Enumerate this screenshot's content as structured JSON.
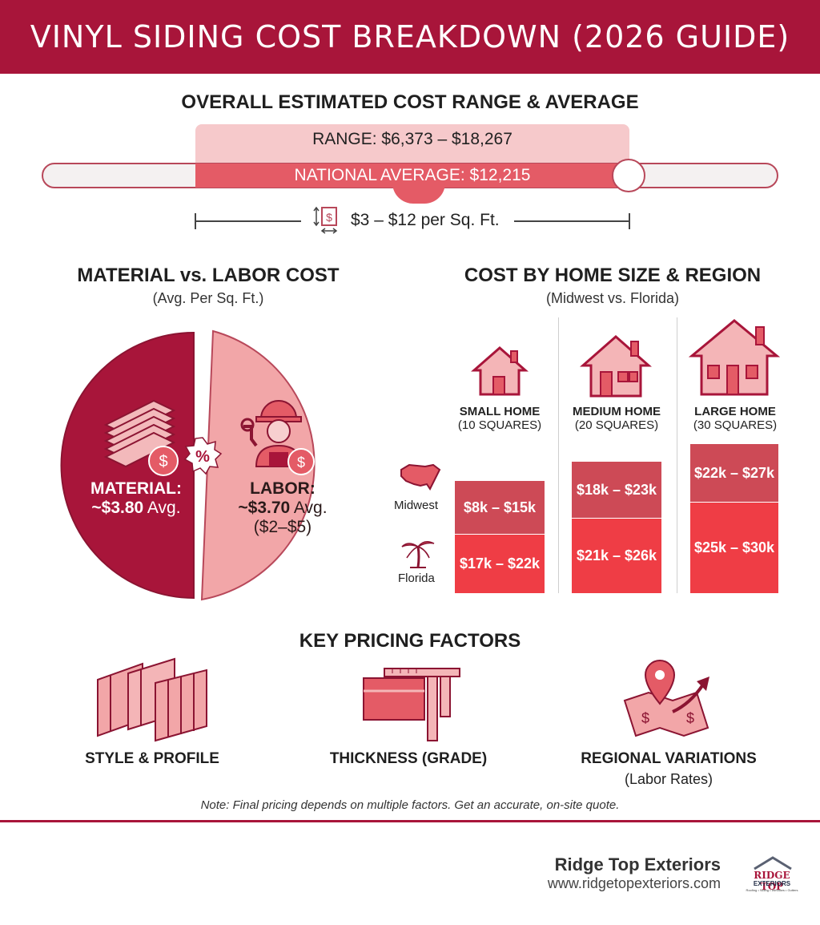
{
  "header": {
    "title": "VINYL SIDING COST BREAKDOWN (2026 GUIDE)"
  },
  "overall": {
    "title": "OVERALL ESTIMATED COST RANGE & AVERAGE",
    "range_label": "RANGE: $6,373 – $18,267",
    "average_label": "NATIONAL AVERAGE: $12,215",
    "per_sqft_label": "$3 – $12 per Sq. Ft."
  },
  "material_labor": {
    "title": "MATERIAL vs. LABOR COST",
    "subtitle": "(Avg. Per Sq. Ft.)",
    "material_name": "MATERIAL:",
    "material_value": "~$3.80",
    "material_suffix": "Avg.",
    "labor_name": "LABOR:",
    "labor_value": "~$3.70",
    "labor_suffix": "Avg.",
    "labor_range": "($2–$5)"
  },
  "home_size": {
    "title": "COST BY HOME SIZE & REGION",
    "subtitle": "(Midwest vs. Florida)",
    "regions": [
      "Midwest",
      "Florida"
    ],
    "homes": [
      {
        "name": "SMALL HOME",
        "size": "(10 SQUARES)",
        "midwest": "$8k – $15k",
        "florida": "$17k – $22k"
      },
      {
        "name": "MEDIUM HOME",
        "size": "(20 SQUARES)",
        "midwest": "$18k – $23k",
        "florida": "$21k – $26k"
      },
      {
        "name": "LARGE HOME",
        "size": "(30 SQUARES)",
        "midwest": "$22k – $27k",
        "florida": "$25k – $30k"
      }
    ]
  },
  "factors": {
    "title": "KEY PRICING FACTORS",
    "items": [
      {
        "label": "STYLE & PROFILE",
        "sub": ""
      },
      {
        "label": "THICKNESS (GRADE)",
        "sub": ""
      },
      {
        "label": "REGIONAL VARIATIONS",
        "sub": "(Labor Rates)"
      }
    ]
  },
  "note": "Note: Final pricing depends on multiple factors. Get an accurate, on-site quote.",
  "footer": {
    "company": "Ridge Top Exteriors",
    "url": "www.ridgetopexteriors.com",
    "logo_line1": "RIDGE TOP",
    "logo_line2": "EXTERIORS",
    "logo_line3": "Roofing • Siding • Windows • Gutters"
  },
  "colors": {
    "brand": "#a8153a",
    "material": "#a8153a",
    "labor": "#f2a6a8",
    "midwest": "#cd4a56",
    "florida": "#ef3d45"
  }
}
